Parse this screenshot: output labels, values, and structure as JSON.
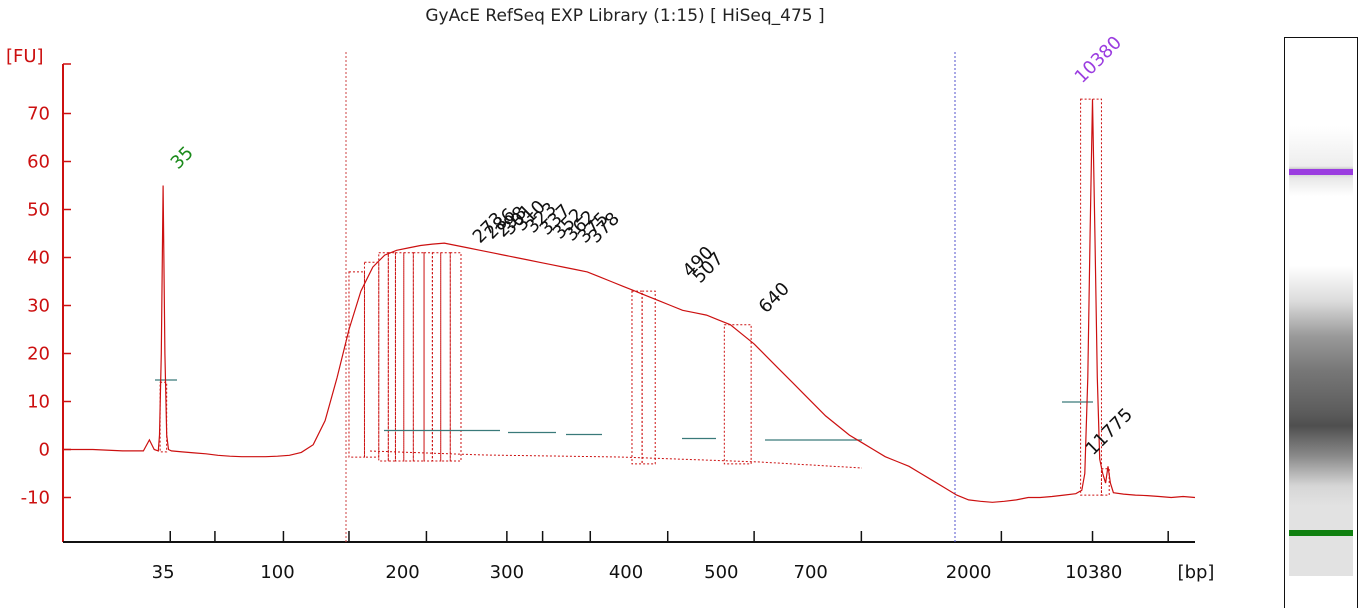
{
  "title": "GyAcE RefSeq EXP Library (1:15)  [ HiSeq_475 ]",
  "chart_data": {
    "type": "line",
    "ylabel": "[FU]",
    "xlabel": "[bp]",
    "ylim": [
      -20,
      77
    ],
    "yticks": [
      70,
      60,
      50,
      40,
      30,
      20,
      10,
      0,
      -10
    ],
    "xtick_labels": [
      "35",
      "100",
      "200",
      "300",
      "400",
      "500",
      "700",
      "2000",
      "10380"
    ],
    "markers": [
      {
        "label": "35",
        "bp": 35,
        "fu": 55,
        "color": "#1a8a1a"
      },
      {
        "label": "10380",
        "bp": 10380,
        "fu": 73,
        "color": "#9b3de0"
      }
    ],
    "peaks": [
      {
        "label": "273",
        "fu": 41
      },
      {
        "label": "286",
        "fu": 42
      },
      {
        "label": "298",
        "fu": 42
      },
      {
        "label": "301",
        "fu": 42
      },
      {
        "label": "310",
        "fu": 43
      },
      {
        "label": "323",
        "fu": 42
      },
      {
        "label": "337",
        "fu": 42
      },
      {
        "label": "352",
        "fu": 41
      },
      {
        "label": "362",
        "fu": 41
      },
      {
        "label": "375",
        "fu": 40
      },
      {
        "label": "378",
        "fu": 40
      },
      {
        "label": "490",
        "fu": 34
      },
      {
        "label": "507",
        "fu": 33
      },
      {
        "label": "640",
        "fu": 26
      },
      {
        "label": "11775",
        "fu": -3
      }
    ],
    "electropherogram": {
      "x_units": "seconds",
      "points": [
        [
          0,
          0
        ],
        [
          5,
          0
        ],
        [
          10,
          -0.3
        ],
        [
          13.5,
          -0.3
        ],
        [
          14.5,
          2
        ],
        [
          15.3,
          0
        ],
        [
          16,
          -0.3
        ],
        [
          16.2,
          3
        ],
        [
          16.5,
          20
        ],
        [
          16.8,
          55
        ],
        [
          17.1,
          20
        ],
        [
          17.4,
          3
        ],
        [
          17.7,
          0
        ],
        [
          18.2,
          -0.3
        ],
        [
          20,
          -0.5
        ],
        [
          22,
          -0.7
        ],
        [
          24,
          -0.9
        ],
        [
          26,
          -1.2
        ],
        [
          28,
          -1.4
        ],
        [
          30,
          -1.5
        ],
        [
          32,
          -1.5
        ],
        [
          34,
          -1.5
        ],
        [
          36,
          -1.4
        ],
        [
          38,
          -1.2
        ],
        [
          40,
          -0.6
        ],
        [
          42,
          1
        ],
        [
          44,
          6
        ],
        [
          46,
          15
        ],
        [
          48,
          25
        ],
        [
          50,
          33
        ],
        [
          52,
          38
        ],
        [
          54,
          40.5
        ],
        [
          56,
          41.5
        ],
        [
          58,
          42
        ],
        [
          60,
          42.5
        ],
        [
          62,
          42.8
        ],
        [
          64,
          43
        ],
        [
          66,
          42.5
        ],
        [
          68,
          42
        ],
        [
          70,
          41.5
        ],
        [
          72,
          41
        ],
        [
          74,
          40.5
        ],
        [
          76,
          40
        ],
        [
          78,
          39.5
        ],
        [
          80,
          39
        ],
        [
          82,
          38.5
        ],
        [
          84,
          38
        ],
        [
          86,
          37.5
        ],
        [
          88,
          37
        ],
        [
          90,
          36
        ],
        [
          92,
          35
        ],
        [
          94,
          34
        ],
        [
          96,
          33
        ],
        [
          98,
          32
        ],
        [
          100,
          31
        ],
        [
          102,
          30
        ],
        [
          104,
          29
        ],
        [
          106,
          28.5
        ],
        [
          108,
          28
        ],
        [
          110,
          27
        ],
        [
          112,
          26
        ],
        [
          114,
          24
        ],
        [
          116,
          22
        ],
        [
          118,
          19.5
        ],
        [
          120,
          17
        ],
        [
          122,
          14.5
        ],
        [
          124,
          12
        ],
        [
          126,
          9.5
        ],
        [
          128,
          7
        ],
        [
          130,
          5
        ],
        [
          132,
          3
        ],
        [
          134,
          1.5
        ],
        [
          136,
          0
        ],
        [
          138,
          -1.5
        ],
        [
          140,
          -2.5
        ],
        [
          142,
          -3.5
        ],
        [
          144,
          -5
        ],
        [
          146,
          -6.5
        ],
        [
          148,
          -8
        ],
        [
          150,
          -9.5
        ],
        [
          152,
          -10.5
        ],
        [
          154,
          -10.8
        ],
        [
          156,
          -11
        ],
        [
          158,
          -10.8
        ],
        [
          160,
          -10.5
        ],
        [
          162,
          -10
        ],
        [
          164,
          -10
        ],
        [
          166,
          -9.8
        ],
        [
          168,
          -9.5
        ],
        [
          170,
          -9.2
        ],
        [
          171,
          -8.5
        ],
        [
          171.5,
          -5
        ],
        [
          172,
          15
        ],
        [
          172.4,
          45
        ],
        [
          172.8,
          73
        ],
        [
          173.2,
          45
        ],
        [
          173.6,
          15
        ],
        [
          174,
          -2
        ],
        [
          174.5,
          -5
        ],
        [
          175,
          -7
        ],
        [
          175.4,
          -3.5
        ],
        [
          175.8,
          -7
        ],
        [
          176.3,
          -9
        ],
        [
          178,
          -9.3
        ],
        [
          180,
          -9.5
        ],
        [
          182,
          -9.6
        ],
        [
          184,
          -9.8
        ],
        [
          186,
          -10
        ],
        [
          188,
          -9.8
        ],
        [
          190,
          -10
        ]
      ]
    }
  }
}
